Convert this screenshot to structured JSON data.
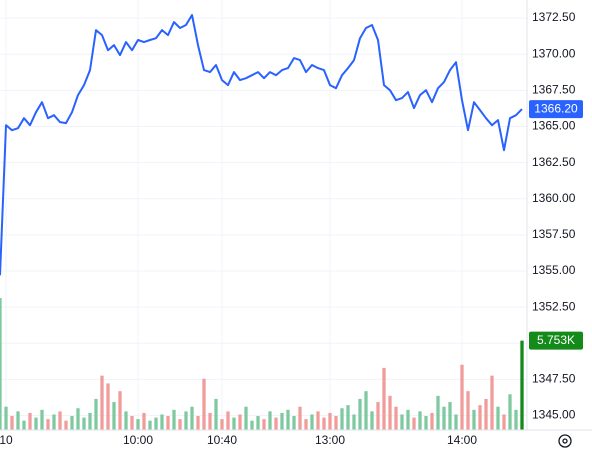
{
  "chart_data": {
    "type": "line",
    "xlim": [
      0,
      87
    ],
    "xticks": [
      {
        "value": 1,
        "label": "10"
      },
      {
        "value": 23,
        "label": "10:00"
      },
      {
        "value": 37,
        "label": "10:40"
      },
      {
        "value": 55,
        "label": "13:00"
      },
      {
        "value": 77,
        "label": "14:00"
      }
    ],
    "ylim": [
      1344,
      1373.75
    ],
    "yticks": [
      {
        "value": 1345,
        "label": "1345.00"
      },
      {
        "value": 1347.5,
        "label": "1347.50"
      },
      {
        "value": 1350,
        "label": "1350.00"
      },
      {
        "value": 1352.5,
        "label": "1352.50"
      },
      {
        "value": 1355,
        "label": "1355.00"
      },
      {
        "value": 1357.5,
        "label": "1357.50"
      },
      {
        "value": 1360,
        "label": "1360.00"
      },
      {
        "value": 1362.5,
        "label": "1362.50"
      },
      {
        "value": 1365,
        "label": "1365.00"
      },
      {
        "value": 1367.5,
        "label": "1367.50"
      },
      {
        "value": 1370,
        "label": "1370.00"
      },
      {
        "value": 1372.5,
        "label": "1372.50"
      }
    ],
    "grid": true,
    "price": {
      "color": "#2962ff",
      "last_label": "1366.20",
      "values": [
        1354.7,
        1365.09,
        1364.74,
        1364.88,
        1365.57,
        1365.09,
        1365.99,
        1366.68,
        1365.57,
        1365.78,
        1365.3,
        1365.23,
        1365.99,
        1367.17,
        1367.86,
        1368.9,
        1371.67,
        1371.32,
        1370.28,
        1370.63,
        1369.94,
        1370.84,
        1370.28,
        1370.98,
        1370.84,
        1370.98,
        1371.11,
        1371.67,
        1371.32,
        1372.22,
        1371.81,
        1372.02,
        1372.71,
        1370.63,
        1368.9,
        1368.76,
        1369.25,
        1368.21,
        1367.86,
        1368.76,
        1368.21,
        1368.34,
        1368.55,
        1368.76,
        1368.34,
        1368.76,
        1368.55,
        1368.9,
        1369.04,
        1369.73,
        1369.59,
        1368.76,
        1369.25,
        1369.04,
        1368.9,
        1367.86,
        1367.65,
        1368.55,
        1369.04,
        1369.59,
        1371.11,
        1371.81,
        1372.02,
        1370.98,
        1367.86,
        1367.51,
        1366.82,
        1366.96,
        1367.38,
        1366.27,
        1367.17,
        1367.51,
        1366.68,
        1367.65,
        1368.07,
        1368.9,
        1369.45,
        1366.82,
        1364.74,
        1366.68,
        1366.13,
        1365.57,
        1365.09,
        1365.44,
        1363.36,
        1365.57,
        1365.78,
        1366.2
      ]
    },
    "volume": {
      "ylim": [
        0,
        8500
      ],
      "up_color": "#7fc9a0",
      "down_color": "#f09c9a",
      "label_color": "#138a1a",
      "last_label": "5.753K",
      "values": [
        8500,
        1500,
        900,
        1200,
        600,
        1100,
        800,
        1300,
        700,
        1000,
        1200,
        600,
        900,
        1400,
        800,
        1100,
        2000,
        3500,
        3000,
        1800,
        2500,
        1200,
        900,
        700,
        1100,
        600,
        800,
        1000,
        900,
        1300,
        700,
        1200,
        1500,
        900,
        3300,
        1100,
        2000,
        700,
        1200,
        800,
        1000,
        1500,
        600,
        900,
        700,
        1200,
        800,
        1100,
        1300,
        900,
        1500,
        700,
        1000,
        1200,
        800,
        1100,
        900,
        1400,
        1600,
        1000,
        2000,
        2500,
        1200,
        1800,
        4000,
        2200,
        1500,
        1000,
        1300,
        800,
        1200,
        900,
        1100,
        2200,
        1500,
        1800,
        1000,
        4200,
        2500,
        1300,
        1600,
        2000,
        3500,
        1500,
        1000,
        2300,
        1300,
        5753
      ]
    }
  }
}
